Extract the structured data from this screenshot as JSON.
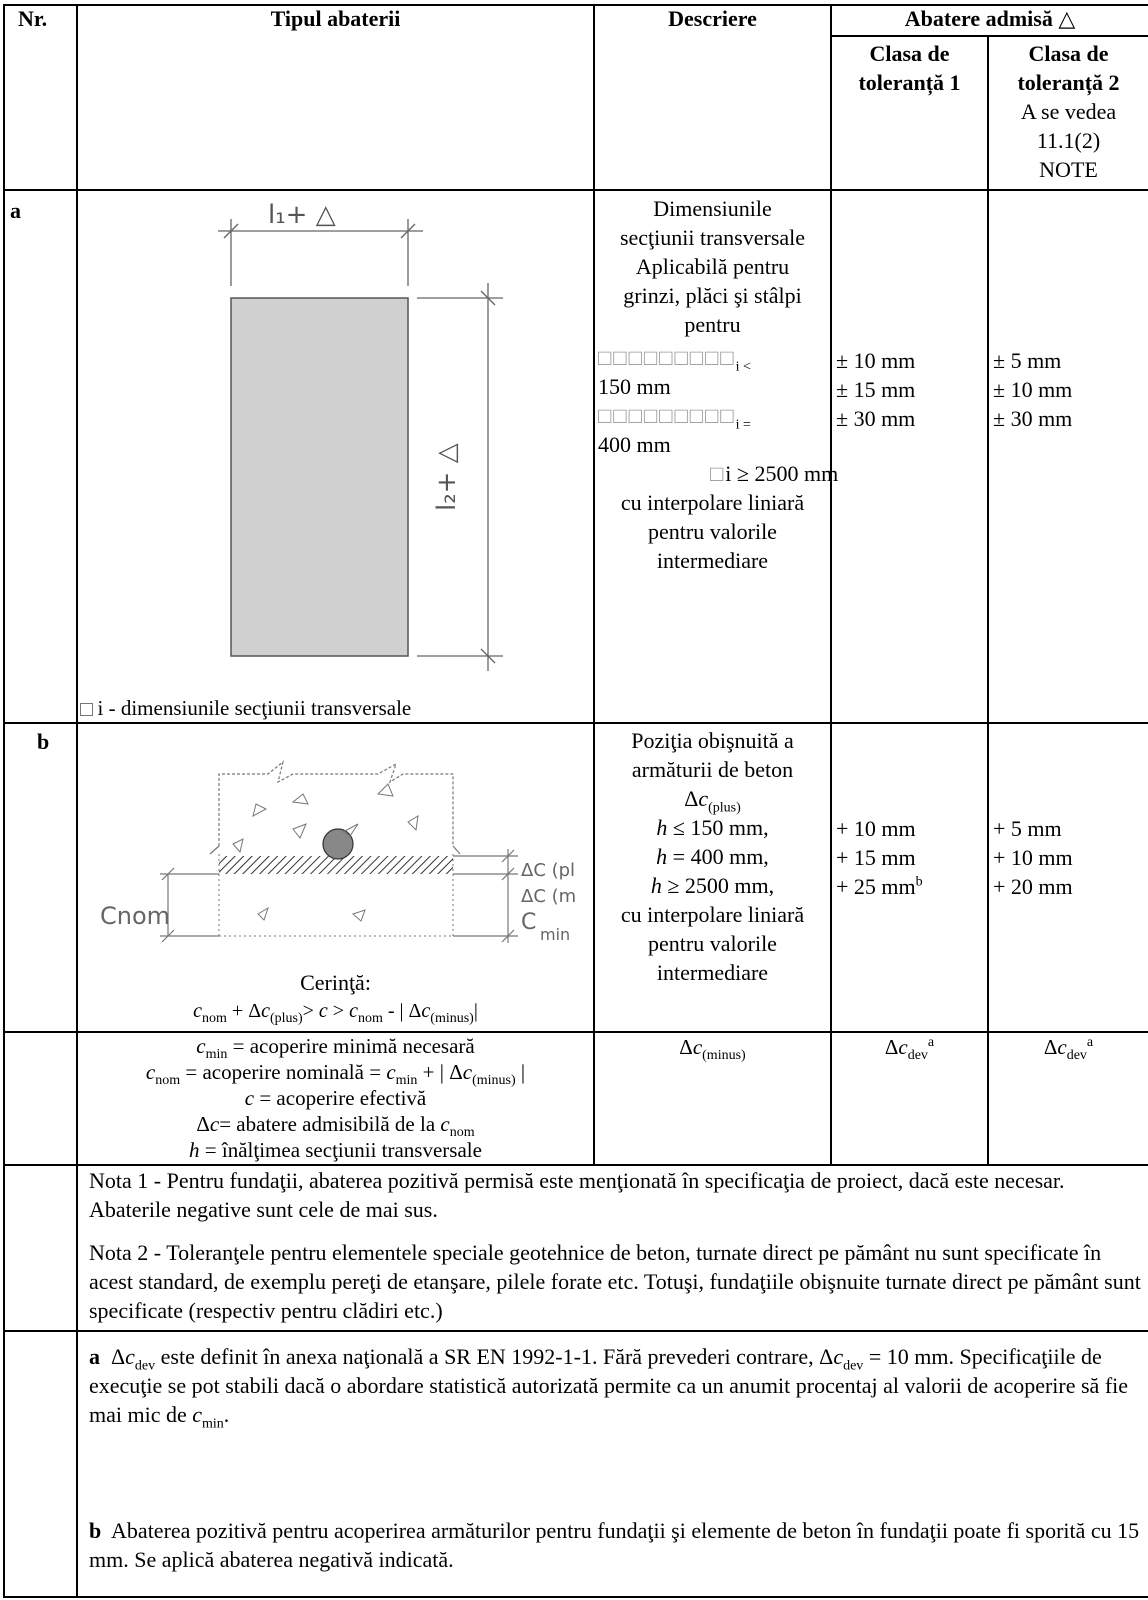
{
  "header": {
    "nr": "Nr.",
    "tip": "Tipul abaterii",
    "descriere": "Descriere",
    "abatere": "Abatere admisă △",
    "clasa1_l1": "Clasa de",
    "clasa1_l2": "toleranță 1",
    "clasa2_l1": "Clasa de",
    "clasa2_l2": "toleranță 2",
    "clasa2_n1": "A se vedea",
    "clasa2_n2": "11.1(2)",
    "clasa2_n3": "NOTE"
  },
  "row_a": {
    "nr": "a",
    "fig_label_top": "l1 + Δ",
    "fig_label_side": "l2 + Δ",
    "caption": "i - dimensiunile secţiunii transversale",
    "desc": [
      "Dimensiunile",
      "secţiunii transversale",
      "Aplicabilă pentru",
      "grinzi, plăci şi stâlpi",
      "pentru"
    ],
    "desc_v1": "i <",
    "desc_v1b": "150 mm",
    "desc_v2": "i =",
    "desc_v2b": "400 mm",
    "desc_v3": "i ≥ 2500 mm",
    "desc_end": [
      "cu interpolare liniară",
      "pentru valorile",
      "intermediare"
    ],
    "c1": [
      "± 10 mm",
      "± 15 mm",
      "± 30 mm"
    ],
    "c2": [
      "± 5 mm",
      "± 10 mm",
      "± 30 mm"
    ]
  },
  "row_b": {
    "nr": "b",
    "fig_cnom": "Cnom",
    "fig_dc_plus": "ΔC (pl",
    "fig_dc_minus": "ΔC (m",
    "fig_cmin": "C",
    "fig_cmin_sub": "min",
    "cerinta": "Cerinţă:",
    "desc_l1": "Poziţia obişnuită a",
    "desc_l2": "armăturii de beton",
    "desc_h1": "≤ 150 mm,",
    "desc_h2": "= 400 mm,",
    "desc_h3": "≥ 2500 mm,",
    "desc_end": [
      "cu interpolare liniară",
      "pentru valorile",
      "intermediare"
    ],
    "c1": [
      "+ 10 mm",
      "+ 15 mm",
      "+ 25 mm"
    ],
    "c2": [
      "+ 5 mm",
      "+ 10 mm",
      "+ 20 mm"
    ]
  },
  "row_c": {
    "l1": "= acoperire minimă necesară",
    "l2a": "= acoperire nominală =",
    "l3": "= acoperire efectivă",
    "l4": "= abatere admisibilă de la",
    "l5": "= înălţimea secţiunii transversale"
  },
  "notes": {
    "nota1": "Nota 1 - Pentru fundaţii, abaterea pozitivă permisă este menţionată în specificaţia de proiect, dacă este necesar. Abaterile negative sunt cele de mai sus.",
    "nota2": "Nota 2 - Toleranţele pentru elementele speciale geotehnice de beton, turnate direct pe pământ nu sunt specificate în acest standard, de exemplu  pereţi de etanşare, pilele forate etc. Totuşi, fundaţiile obişnuite turnate direct pe pământ sunt specificate (respectiv pentru clădiri etc.)"
  },
  "footnotes": {
    "a_text1": "este definit în anexa naţională a SR EN 1992-1-1. Fără prevederi contrare,",
    "a_text2": "= 10 mm.",
    "a_text3": "Specificaţiile de execuţie se pot stabili dacă o abordare statistică autorizată permite ca un anumit procentaj al valorii de acoperire să fie  mai mic de",
    "b_text": "Abaterea pozitivă pentru acoperirea armăturilor pentru fundaţii şi elemente de beton în fundaţii poate fi sporită cu 15 mm. Se aplică abaterea negativă indicată."
  }
}
